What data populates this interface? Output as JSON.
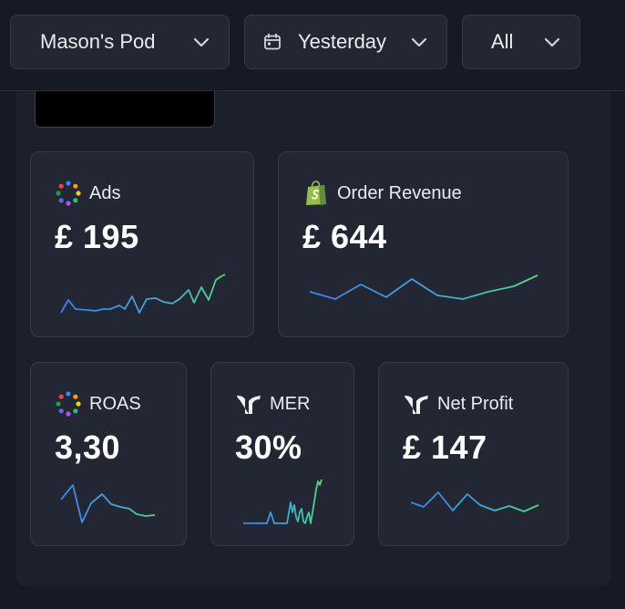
{
  "filters": {
    "pod": "Mason's Pod",
    "date": "Yesterday",
    "scope": "All"
  },
  "cards": {
    "ads": {
      "title": "Ads",
      "value": "£ 195",
      "icon": "multicolor-dots-icon"
    },
    "order_revenue": {
      "title": "Order Revenue",
      "value": "£ 644",
      "icon": "shopify-bag-icon"
    },
    "roas": {
      "title": "ROAS",
      "value": "3,30",
      "icon": "multicolor-dots-icon"
    },
    "mer": {
      "title": "MER",
      "value": "30%",
      "icon": "brand-logo-icon"
    },
    "net_profit": {
      "title": "Net Profit",
      "value": "£ 147",
      "icon": "brand-logo-icon"
    }
  },
  "colors": {
    "background": "#161a24",
    "card": "#222733",
    "spark_start": "#3b82f6",
    "spark_end": "#4ade80",
    "shopify": "#95bf47"
  }
}
